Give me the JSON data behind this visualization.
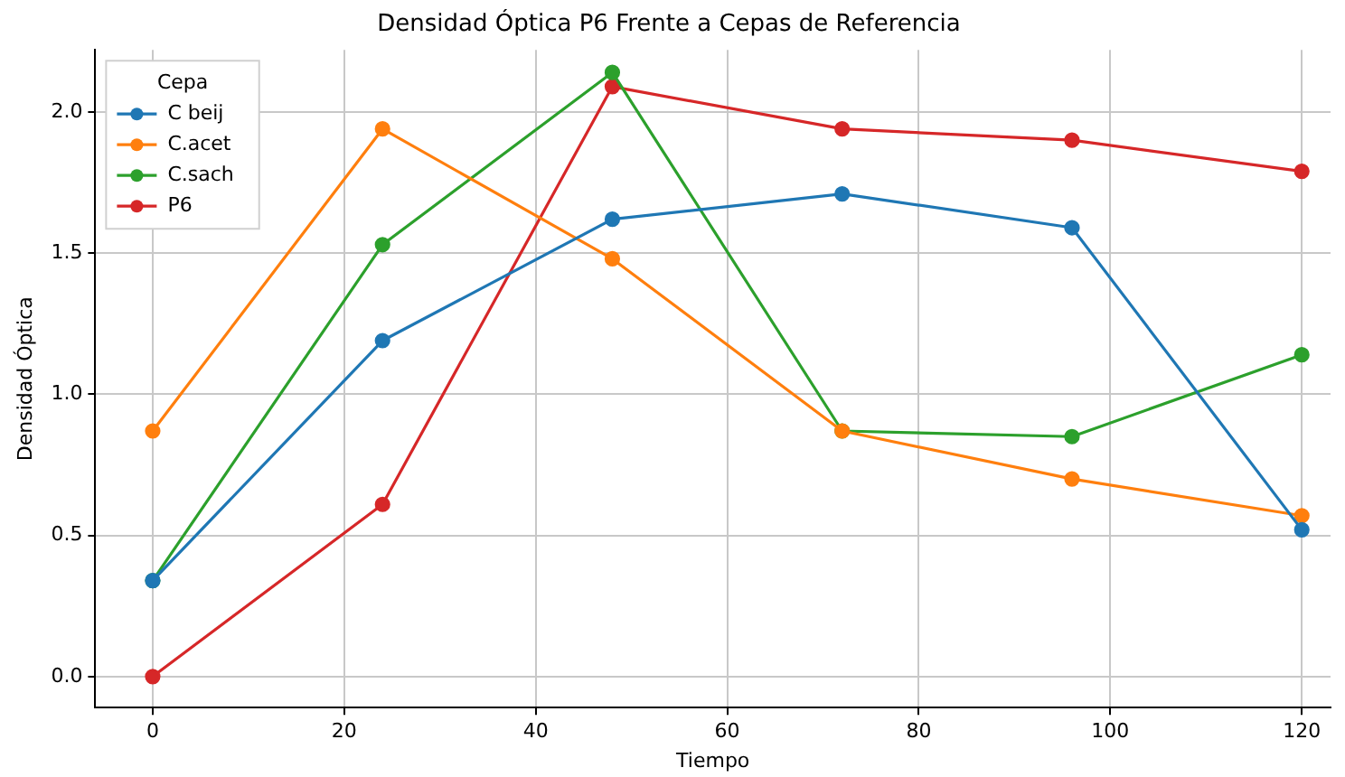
{
  "chart_data": {
    "type": "line",
    "title": "Densidad Óptica P6 Frente a Cepas de Referencia",
    "xlabel": "Tiempo",
    "ylabel": "Densidad Óptica",
    "legend_title": "Cepa",
    "x": [
      0,
      24,
      48,
      72,
      96,
      120
    ],
    "series": [
      {
        "name": "C beij",
        "color": "#1f77b4",
        "values": [
          0.34,
          1.19,
          1.62,
          1.71,
          1.59,
          0.52
        ]
      },
      {
        "name": "C.acet",
        "color": "#ff7f0e",
        "values": [
          0.87,
          1.94,
          1.48,
          0.87,
          0.7,
          0.57
        ]
      },
      {
        "name": "C.sach",
        "color": "#2ca02c",
        "values": [
          0.34,
          1.53,
          2.14,
          0.87,
          0.85,
          1.14
        ]
      },
      {
        "name": "P6",
        "color": "#d62728",
        "values": [
          0.0,
          0.61,
          2.09,
          1.94,
          1.9,
          1.79
        ]
      }
    ],
    "xlim": [
      -6,
      123
    ],
    "ylim": [
      -0.11,
      2.22
    ],
    "xticks": [
      0,
      20,
      40,
      60,
      80,
      100,
      120
    ],
    "yticks": [
      {
        "value": 0,
        "label": "0.0"
      },
      {
        "value": 0.5,
        "label": "0.5"
      },
      {
        "value": 1,
        "label": "1.0"
      },
      {
        "value": 1.5,
        "label": "1.5"
      },
      {
        "value": 2,
        "label": "2.0"
      }
    ],
    "grid": true,
    "legend": "top left",
    "marker": "circle",
    "line_style": "solid"
  }
}
